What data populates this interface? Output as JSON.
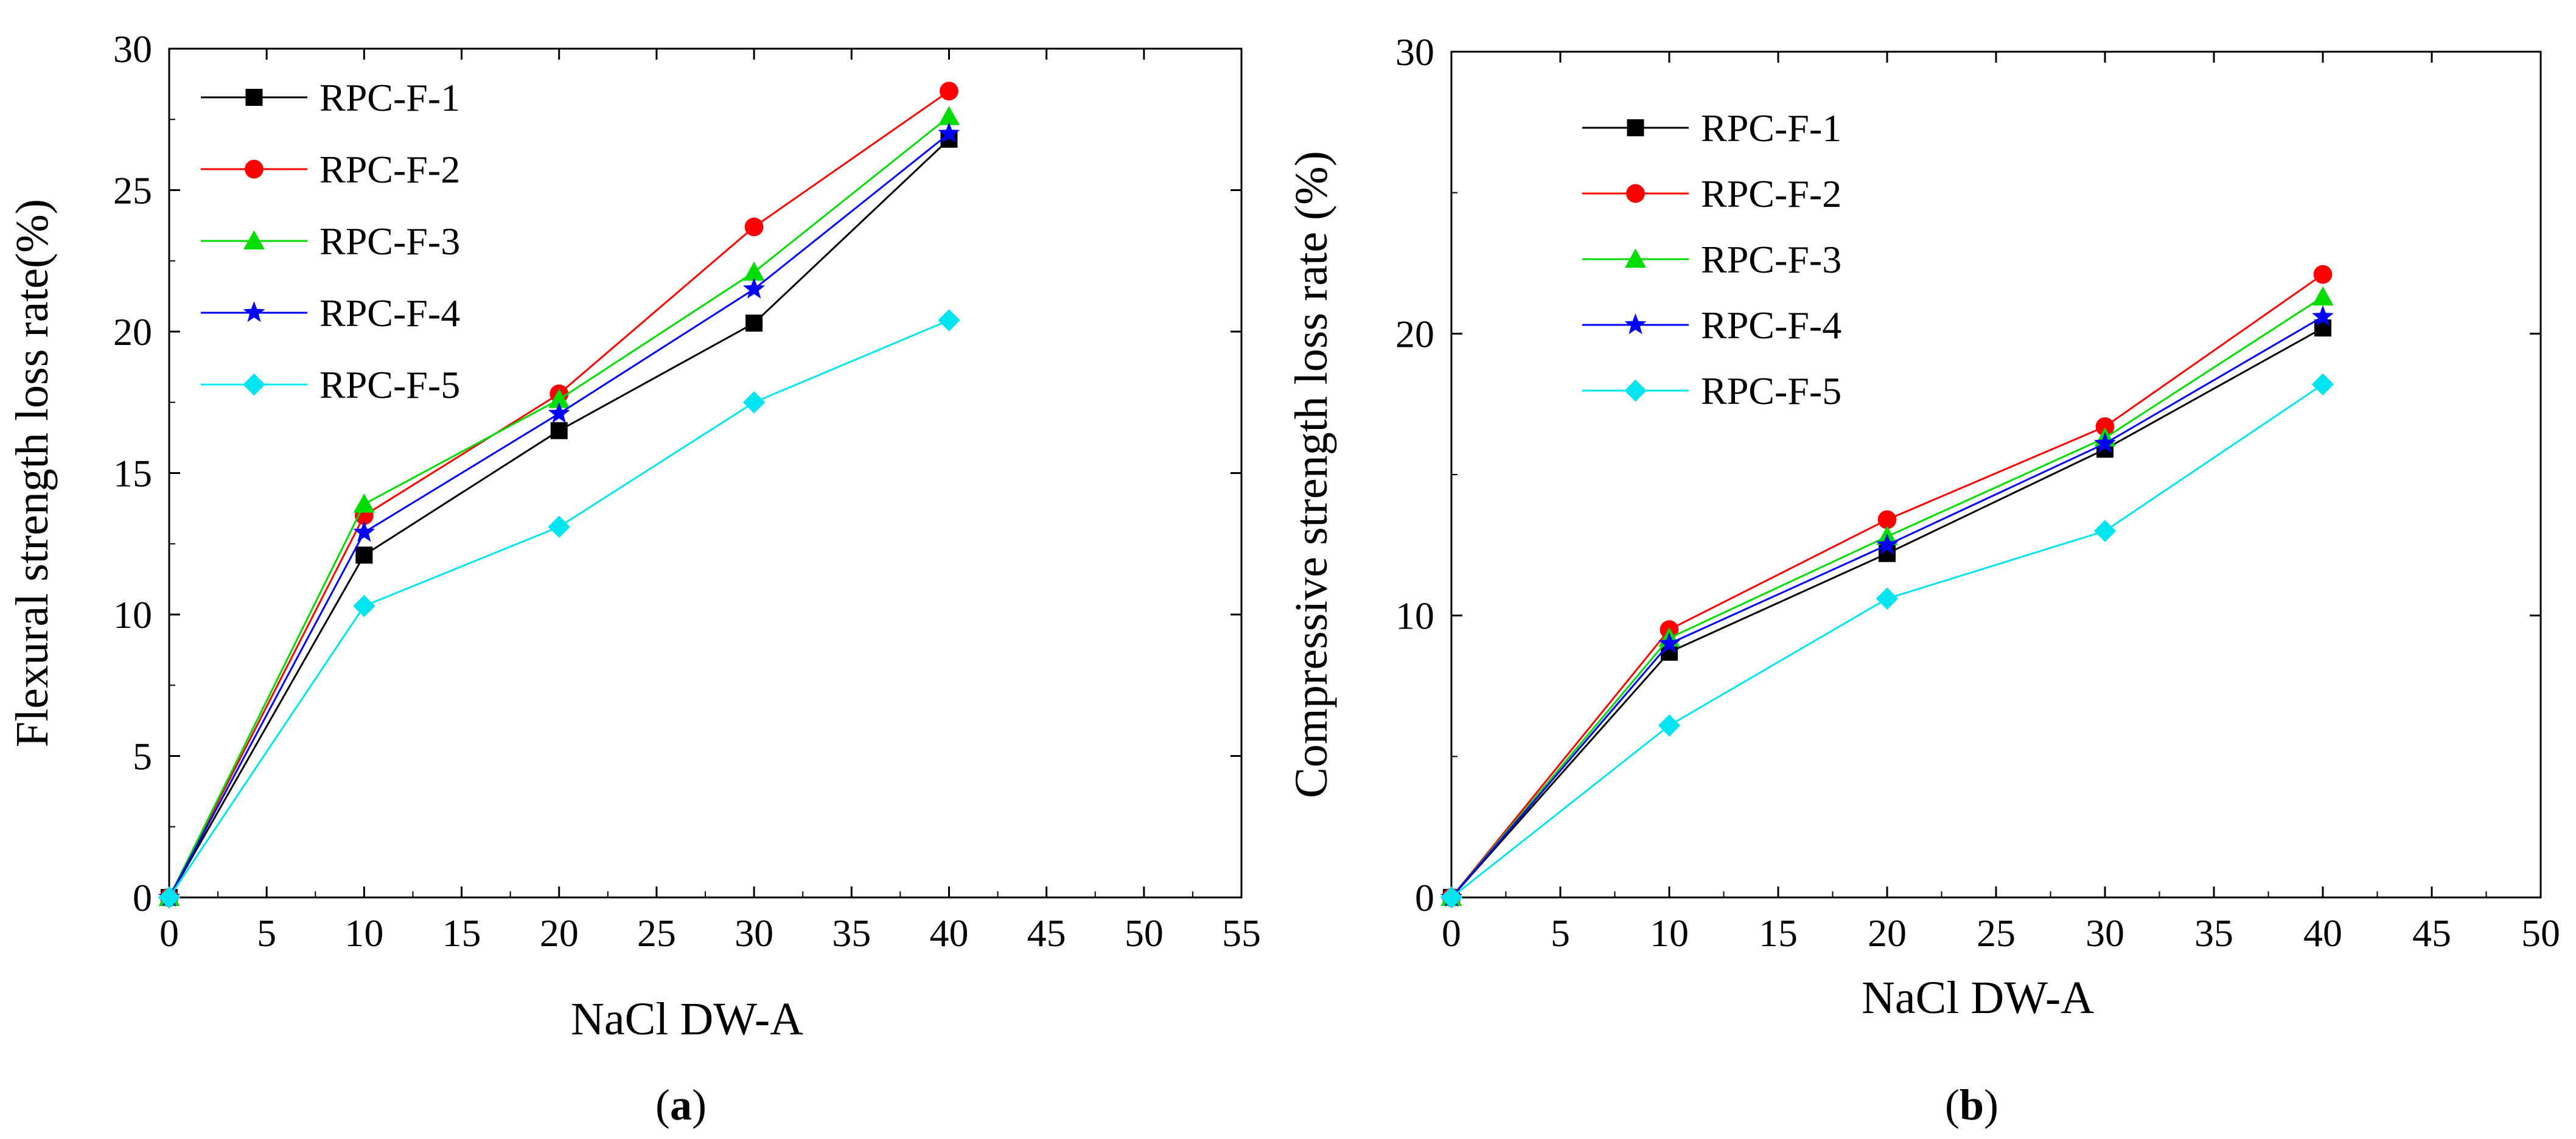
{
  "colors": {
    "RPC-F-1": "#000000",
    "RPC-F-2": "#ff0000",
    "RPC-F-3": "#00dd00",
    "RPC-F-4": "#0000ff",
    "RPC-F-5": "#00e5f0",
    "axes": "#000000"
  },
  "chart_data": [
    {
      "type": "line",
      "panel_label_parts": [
        "(",
        "a",
        ")"
      ],
      "xlabel": "NaCl DW-A",
      "ylabel": "Flexural strength loss rate(%)",
      "xlim": [
        0,
        55
      ],
      "ylim": [
        0,
        30
      ],
      "xticks": [
        0,
        5,
        10,
        15,
        20,
        25,
        30,
        35,
        40,
        45,
        50,
        55
      ],
      "yticks": [
        0,
        5,
        10,
        15,
        20,
        25,
        30
      ],
      "legend_position": "top-left",
      "x": [
        0,
        10,
        20,
        30,
        40
      ],
      "series": [
        {
          "name": "RPC-F-1",
          "marker": "square",
          "values": [
            0,
            12.1,
            16.5,
            20.3,
            26.8
          ]
        },
        {
          "name": "RPC-F-2",
          "marker": "circle",
          "values": [
            0,
            13.5,
            17.8,
            23.7,
            28.5
          ]
        },
        {
          "name": "RPC-F-3",
          "marker": "triangle",
          "values": [
            0,
            13.9,
            17.6,
            22.1,
            27.6
          ]
        },
        {
          "name": "RPC-F-4",
          "marker": "star",
          "values": [
            0,
            12.9,
            17.1,
            21.5,
            27.0
          ]
        },
        {
          "name": "RPC-F-5",
          "marker": "diamond",
          "values": [
            0,
            10.3,
            13.1,
            17.5,
            20.4
          ]
        }
      ]
    },
    {
      "type": "line",
      "panel_label_parts": [
        "(",
        "b",
        ")"
      ],
      "xlabel": "NaCl DW-A",
      "ylabel": "Compressive strength loss rate (%)",
      "xlim": [
        0,
        50
      ],
      "ylim": [
        0,
        30
      ],
      "xticks": [
        0,
        5,
        10,
        15,
        20,
        25,
        30,
        35,
        40,
        45,
        50
      ],
      "yticks": [
        0,
        10,
        20,
        30
      ],
      "legend_position": "top-left",
      "x": [
        0,
        10,
        20,
        30,
        40
      ],
      "series": [
        {
          "name": "RPC-F-1",
          "marker": "square",
          "values": [
            0,
            8.7,
            12.2,
            15.9,
            20.2
          ]
        },
        {
          "name": "RPC-F-2",
          "marker": "circle",
          "values": [
            0,
            9.5,
            13.4,
            16.7,
            22.1
          ]
        },
        {
          "name": "RPC-F-3",
          "marker": "triangle",
          "values": [
            0,
            9.2,
            12.8,
            16.3,
            21.3
          ]
        },
        {
          "name": "RPC-F-4",
          "marker": "star",
          "values": [
            0,
            9.0,
            12.5,
            16.1,
            20.6
          ]
        },
        {
          "name": "RPC-F-5",
          "marker": "diamond",
          "values": [
            0,
            6.1,
            10.6,
            13.0,
            18.2
          ]
        }
      ]
    }
  ]
}
